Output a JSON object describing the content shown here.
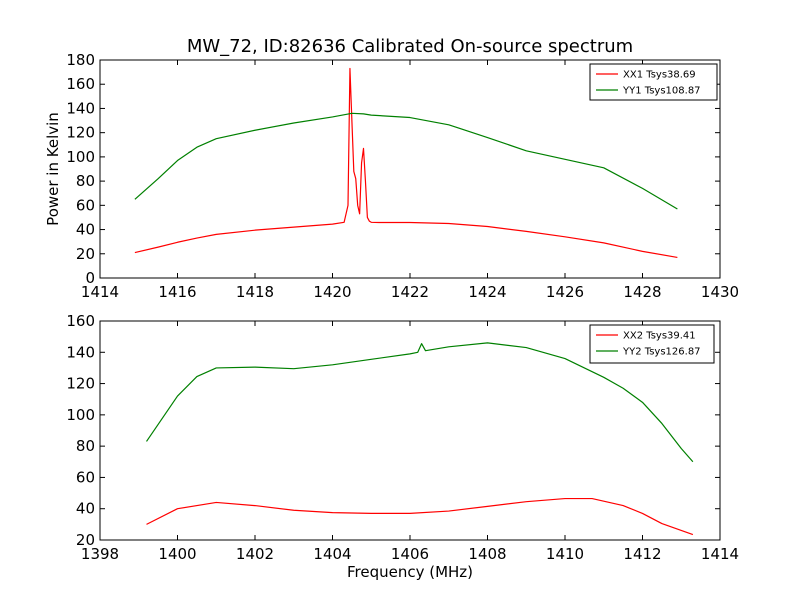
{
  "chart_data": [
    {
      "type": "line",
      "title": "MW_72, ID:82636 Calibrated On-source spectrum",
      "xlabel": "",
      "ylabel": "Power in Kelvin",
      "xlim": [
        1414,
        1430
      ],
      "ylim": [
        0,
        180
      ],
      "xticks": [
        "1414",
        "1416",
        "1418",
        "1420",
        "1422",
        "1424",
        "1426",
        "1428",
        "1430"
      ],
      "yticks": [
        "0",
        "20",
        "40",
        "60",
        "80",
        "100",
        "120",
        "140",
        "160",
        "180"
      ],
      "legend_position": "top-right",
      "grid": false,
      "series": [
        {
          "name": "XX1 Tsys38.69",
          "color": "#ff0000",
          "x": [
            1414.9,
            1415.5,
            1416,
            1416.5,
            1417,
            1418,
            1419,
            1420,
            1420.3,
            1420.4,
            1420.45,
            1420.5,
            1420.55,
            1420.6,
            1420.65,
            1420.7,
            1420.75,
            1420.8,
            1420.85,
            1420.9,
            1420.95,
            1421,
            1421.2,
            1422,
            1423,
            1424,
            1425,
            1426,
            1427,
            1428,
            1428.9
          ],
          "y": [
            21,
            25.5,
            29.5,
            33,
            36,
            39.5,
            42,
            44.5,
            46,
            60,
            173,
            130,
            88,
            82,
            60,
            53,
            95,
            107,
            80,
            50,
            47,
            46,
            45.8,
            45.8,
            45,
            42.5,
            38.5,
            34,
            29,
            22,
            17
          ]
        },
        {
          "name": "YY1 Tsys108.87",
          "color": "#008000",
          "x": [
            1414.9,
            1415.5,
            1416,
            1416.5,
            1417,
            1418,
            1419,
            1420,
            1420.5,
            1420.8,
            1421,
            1422,
            1423,
            1424,
            1425,
            1426,
            1427,
            1428,
            1428.9
          ],
          "y": [
            65,
            82,
            97,
            108,
            115,
            122,
            128,
            133,
            136,
            135.5,
            134.5,
            132.5,
            126.5,
            116,
            105,
            98,
            91,
            74,
            57
          ]
        }
      ]
    },
    {
      "type": "line",
      "title": "",
      "xlabel": "Frequency (MHz)",
      "ylabel": "",
      "xlim": [
        1398,
        1414
      ],
      "ylim": [
        20,
        160
      ],
      "xticks": [
        "1398",
        "1400",
        "1402",
        "1404",
        "1406",
        "1408",
        "1410",
        "1412",
        "1414"
      ],
      "yticks": [
        "20",
        "40",
        "60",
        "80",
        "100",
        "120",
        "140",
        "160"
      ],
      "legend_position": "top-right",
      "grid": false,
      "series": [
        {
          "name": "XX2 Tsys39.41",
          "color": "#ff0000",
          "x": [
            1399.2,
            1400,
            1401,
            1402,
            1403,
            1404,
            1405,
            1406,
            1407,
            1408,
            1409,
            1410,
            1410.7,
            1411.5,
            1412,
            1412.5,
            1413.3
          ],
          "y": [
            30,
            40,
            44,
            42,
            39,
            37.5,
            37,
            37,
            38.5,
            41.5,
            44.5,
            46.5,
            46.5,
            42,
            37,
            30.5,
            23.5
          ]
        },
        {
          "name": "YY2 Tsys126.87",
          "color": "#008000",
          "x": [
            1399.2,
            1400,
            1400.5,
            1401,
            1402,
            1403,
            1404,
            1405,
            1406,
            1406.2,
            1406.3,
            1406.4,
            1407,
            1408,
            1409,
            1410,
            1411,
            1411.5,
            1412,
            1412.5,
            1413,
            1413.3
          ],
          "y": [
            83,
            112,
            124.5,
            130,
            130.5,
            129.5,
            132,
            135.5,
            139,
            140,
            145.5,
            141,
            143.5,
            146,
            143,
            136,
            124,
            117,
            108,
            94.5,
            78.5,
            70
          ]
        }
      ]
    }
  ]
}
